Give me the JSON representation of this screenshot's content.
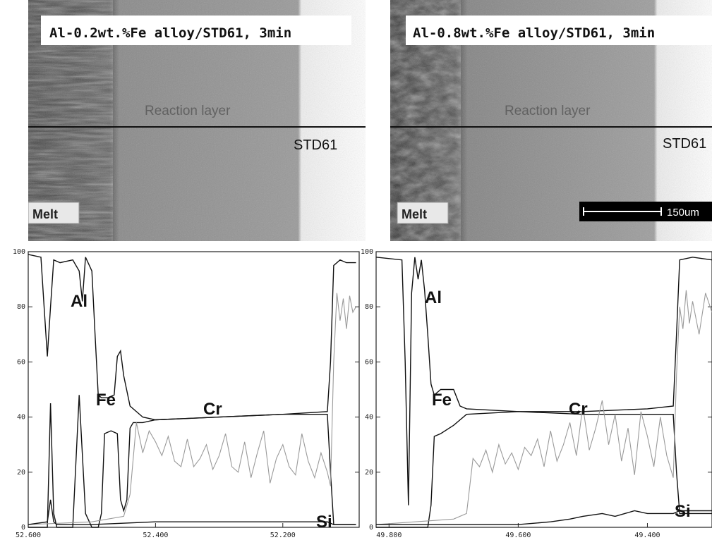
{
  "panels": [
    {
      "micrograph": {
        "title": "Al-0.2wt.%Fe alloy/STD61, 3min",
        "reaction_label": "Reaction layer",
        "substrate_label": "STD61",
        "melt_label": "Melt"
      }
    },
    {
      "micrograph": {
        "title": "Al-0.8wt.%Fe alloy/STD61, 3min",
        "reaction_label": "Reaction layer",
        "substrate_label": "STD61",
        "melt_label": "Melt",
        "scale_label": "150um"
      }
    }
  ],
  "chart_data": [
    {
      "type": "line",
      "title": "",
      "xlabel": "",
      "ylabel": "",
      "xlim": [
        52.6,
        52.08
      ],
      "ylim": [
        0,
        100
      ],
      "x_ticks": [
        "52.600",
        "52.400",
        "52.200"
      ],
      "y_ticks": [
        "0",
        "20",
        "40",
        "60",
        "80",
        "100"
      ],
      "series": [
        {
          "name": "Al",
          "color": "#111111",
          "x": [
            52.6,
            52.58,
            52.575,
            52.57,
            52.565,
            52.56,
            52.55,
            52.53,
            52.52,
            52.515,
            52.51,
            52.5,
            52.495,
            52.49,
            52.485,
            52.475,
            52.465,
            52.46,
            52.455,
            52.45,
            52.44,
            52.42,
            52.4,
            52.3,
            52.2,
            52.13,
            52.125,
            52.12,
            52.11,
            52.1,
            52.085
          ],
          "y": [
            99,
            98,
            80,
            62,
            80,
            97,
            96,
            97,
            93,
            82,
            98,
            93,
            70,
            48,
            47,
            47,
            48,
            62,
            64,
            55,
            44,
            40,
            39,
            40,
            41,
            42,
            60,
            95,
            97,
            96,
            96
          ]
        },
        {
          "name": "Fe",
          "color": "#111111",
          "x": [
            52.6,
            52.57,
            52.565,
            52.56,
            52.555,
            52.53,
            52.52,
            52.51,
            52.5,
            52.49,
            52.485,
            52.48,
            52.47,
            52.46,
            52.455,
            52.45,
            52.445,
            52.44,
            52.435,
            52.43,
            52.42,
            52.4,
            52.3,
            52.2,
            52.13,
            52.125,
            52.12,
            52.1,
            52.085
          ],
          "y": [
            0,
            0,
            45,
            5,
            0,
            0,
            48,
            5,
            0,
            0,
            5,
            34,
            35,
            34,
            10,
            6,
            10,
            36,
            38,
            38,
            38,
            39,
            40,
            41,
            41,
            20,
            1,
            1,
            1
          ]
        },
        {
          "name": "Cr",
          "color": "#9a9a9a",
          "x": [
            52.6,
            52.5,
            52.45,
            52.44,
            52.43,
            52.42,
            52.41,
            52.4,
            52.39,
            52.38,
            52.37,
            52.36,
            52.35,
            52.34,
            52.33,
            52.32,
            52.31,
            52.3,
            52.29,
            52.28,
            52.27,
            52.26,
            52.25,
            52.24,
            52.23,
            52.22,
            52.21,
            52.2,
            52.19,
            52.18,
            52.17,
            52.16,
            52.15,
            52.14,
            52.13,
            52.125,
            52.12,
            52.115,
            52.11,
            52.105,
            52.1,
            52.095,
            52.09,
            52.085
          ],
          "y": [
            1,
            2,
            4,
            12,
            38,
            27,
            35,
            31,
            26,
            33,
            24,
            22,
            32,
            22,
            25,
            30,
            21,
            26,
            34,
            22,
            20,
            31,
            18,
            27,
            35,
            16,
            25,
            30,
            22,
            19,
            34,
            24,
            18,
            27,
            20,
            15,
            60,
            85,
            75,
            83,
            72,
            84,
            78,
            80
          ]
        },
        {
          "name": "Si",
          "color": "#111111",
          "x": [
            52.6,
            52.57,
            52.565,
            52.56,
            52.555,
            52.5,
            52.4,
            52.3,
            52.2,
            52.13,
            52.12,
            52.1,
            52.085
          ],
          "y": [
            1,
            2,
            10,
            2,
            1,
            1,
            2,
            2,
            2,
            2,
            1,
            1,
            1
          ]
        }
      ]
    },
    {
      "type": "line",
      "title": "",
      "xlabel": "",
      "ylabel": "",
      "xlim": [
        49.82,
        49.3
      ],
      "ylim": [
        0,
        100
      ],
      "x_ticks": [
        "49.800",
        "49.600",
        "49.400"
      ],
      "y_ticks": [
        "0",
        "20",
        "40",
        "60",
        "80",
        "100"
      ],
      "series": [
        {
          "name": "Al",
          "color": "#111111",
          "x": [
            49.82,
            49.78,
            49.775,
            49.77,
            49.765,
            49.76,
            49.755,
            49.75,
            49.745,
            49.74,
            49.735,
            49.73,
            49.72,
            49.7,
            49.69,
            49.68,
            49.6,
            49.5,
            49.4,
            49.36,
            49.355,
            49.35,
            49.33,
            49.3
          ],
          "y": [
            98,
            97,
            60,
            8,
            85,
            98,
            90,
            97,
            86,
            70,
            52,
            48,
            50,
            50,
            44,
            43,
            42,
            42,
            43,
            44,
            70,
            97,
            98,
            97
          ]
        },
        {
          "name": "Fe",
          "color": "#111111",
          "x": [
            49.82,
            49.74,
            49.735,
            49.73,
            49.72,
            49.7,
            49.69,
            49.68,
            49.6,
            49.5,
            49.4,
            49.36,
            49.355,
            49.35,
            49.3
          ],
          "y": [
            0,
            0,
            8,
            33,
            34,
            37,
            39,
            41,
            42,
            41,
            41,
            41,
            20,
            5,
            5
          ]
        },
        {
          "name": "Cr",
          "color": "#9a9a9a",
          "x": [
            49.82,
            49.7,
            49.68,
            49.67,
            49.66,
            49.65,
            49.64,
            49.63,
            49.62,
            49.61,
            49.6,
            49.59,
            49.58,
            49.57,
            49.56,
            49.55,
            49.54,
            49.53,
            49.52,
            49.51,
            49.5,
            49.49,
            49.48,
            49.47,
            49.46,
            49.45,
            49.44,
            49.43,
            49.42,
            49.41,
            49.4,
            49.39,
            49.38,
            49.37,
            49.36,
            49.355,
            49.35,
            49.345,
            49.34,
            49.335,
            49.33,
            49.32,
            49.31,
            49.3
          ],
          "y": [
            1,
            3,
            5,
            25,
            22,
            28,
            20,
            30,
            23,
            27,
            21,
            29,
            26,
            32,
            22,
            35,
            24,
            30,
            38,
            26,
            44,
            28,
            36,
            46,
            30,
            41,
            24,
            36,
            19,
            42,
            33,
            22,
            40,
            26,
            18,
            55,
            80,
            72,
            86,
            74,
            82,
            70,
            85,
            78
          ]
        },
        {
          "name": "Si",
          "color": "#111111",
          "x": [
            49.82,
            49.7,
            49.6,
            49.55,
            49.52,
            49.5,
            49.47,
            49.45,
            49.42,
            49.4,
            49.36,
            49.35,
            49.3
          ],
          "y": [
            1,
            1,
            1,
            2,
            3,
            4,
            5,
            4,
            6,
            5,
            5,
            6,
            6
          ]
        }
      ]
    }
  ]
}
